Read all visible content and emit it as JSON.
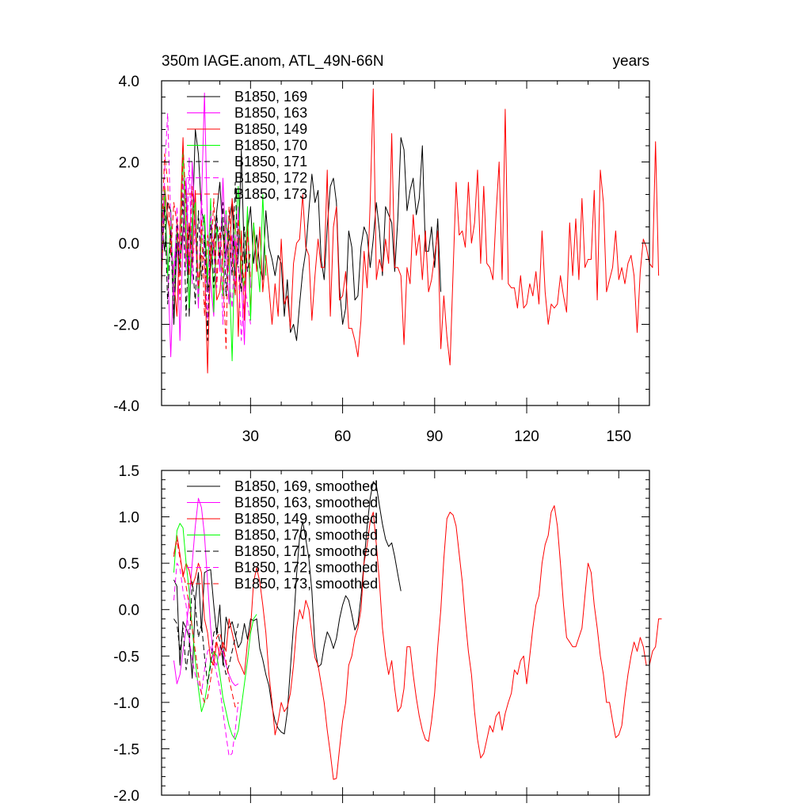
{
  "colors": {
    "s169": "#000000",
    "s163": "#ff00ff",
    "s149": "#ff0000",
    "s170": "#00ff00",
    "s171": "#000000",
    "s172": "#ff00ff",
    "s173": "#ff0000"
  },
  "chart_data": [
    {
      "type": "line",
      "title": "350m IAGE.anom, ATL_49N-66N",
      "subtitle_right": "years",
      "xlim": [
        1,
        160
      ],
      "ylim": [
        -4.0,
        4.0
      ],
      "xticks": [
        30,
        60,
        90,
        120,
        150
      ],
      "xtick_labels": [
        "30",
        "60",
        "90",
        "120",
        "150"
      ],
      "yticks": [
        -4.0,
        -2.0,
        0.0,
        2.0,
        4.0
      ],
      "ytick_labels": [
        "-4.0",
        "-2.0",
        "0.0",
        "2.0",
        "4.0"
      ],
      "legend_placement": "top-left",
      "series": [
        {
          "name": "B1850, 169",
          "style": "solid",
          "color_key": "s169",
          "x_start": 1,
          "values": [
            0.5,
            -0.2,
            1.0,
            0.8,
            -2.0,
            0.0,
            -0.5,
            0.3,
            1.5,
            -1.8,
            0.2,
            2.8,
            2.2,
            0.8,
            0.5,
            -1.2,
            -0.6,
            0.0,
            0.8,
            1.5,
            0.2,
            -0.4,
            0.6,
            1.0,
            -0.8,
            -0.3,
            2.3,
            -0.5,
            0.3,
            0.9,
            -0.5,
            0.2,
            -0.6,
            -0.9,
            0.8,
            -0.1,
            -0.4,
            -0.8,
            -0.3,
            -0.5,
            -1.8,
            -0.9,
            -2.2,
            -2.0,
            -2.4,
            -1.5,
            -0.7,
            -0.2,
            0.8,
            1.7,
            1.0,
            1.3,
            -0.4,
            -0.9,
            0.4,
            1.4,
            1.6,
            1.0,
            -1.1,
            -2.0,
            -1.6,
            0.3,
            -0.1,
            -1.4,
            -1.3,
            -0.1,
            0.4,
            0.2,
            -0.6,
            0.1,
            1.0,
            0.3,
            -0.8,
            0.9,
            0.7,
            0.5,
            -0.7,
            0.6,
            2.6,
            2.3,
            0.8,
            1.3,
            1.6,
            0.7,
            1.1,
            2.4,
            -0.2,
            -0.2,
            0.4,
            -0.6,
            0.6,
            -1.2
          ]
        },
        {
          "name": "B1850, 163",
          "style": "solid",
          "color_key": "s163",
          "x_start": 1,
          "values": [
            0.3,
            1.2,
            -0.5,
            -2.8,
            -0.6,
            0.4,
            -2.4,
            0.1,
            1.6,
            -0.7,
            2.0,
            0.4,
            -1.6,
            1.0,
            3.7,
            0.3,
            -1.0,
            -1.8,
            0.5,
            -0.7,
            1.6,
            -0.3,
            -1.5,
            0.2,
            -1.2,
            0.9,
            -0.9,
            -2.5,
            0.6,
            -1.1
          ]
        },
        {
          "name": "B1850, 149",
          "style": "solid",
          "color_key": "s149",
          "x_start": 1,
          "values": [
            -1.0,
            1.4,
            0.6,
            0.2,
            -0.9,
            -1.8,
            0.4,
            2.6,
            -0.5,
            0.5,
            -0.6,
            1.3,
            -1.3,
            -0.3,
            -0.4,
            -3.2,
            -0.1,
            0.1,
            -1.4,
            -1.2,
            -0.3,
            0.7,
            -0.7,
            1.1,
            0.2,
            -2.3,
            0.3,
            -1.9,
            0.6,
            -1.8,
            0.5,
            -0.7,
            0.4,
            -1.2,
            -0.3,
            -1.1,
            -2.0,
            -1.0,
            -1.8,
            0.1,
            -1.5,
            -1.3,
            -2.1,
            -0.5,
            0.0,
            0.1,
            1.2,
            -0.1,
            -0.3,
            -1.9,
            -0.8,
            0.1,
            -0.6,
            -0.6,
            1.8,
            -1.8,
            0.4,
            0.9,
            -1.4,
            -1.3,
            -0.7,
            -2.1,
            -2.1,
            -2.4,
            -2.8,
            -1.9,
            -0.2,
            -1.1,
            1.0,
            3.8,
            -0.9,
            -0.4,
            -0.7,
            0.1,
            -0.5,
            2.7,
            -0.6,
            -0.6,
            -0.8,
            -2.5,
            -0.6,
            -1.0,
            0.7,
            -0.3,
            0.2,
            -0.9,
            0.3,
            -1.2,
            -0.9,
            -0.3,
            0.3,
            -2.6,
            -1.3,
            -2.3,
            -3.0,
            -0.7,
            1.5,
            0.2,
            0.3,
            -0.1,
            1.5,
            0.0,
            0.5,
            1.8,
            -0.5,
            1.4,
            -0.5,
            -0.6,
            -0.9,
            0.7,
            2.0,
            -0.9,
            3.3,
            -1.0,
            -1.1,
            -1.1,
            -1.6,
            -0.8,
            -1.6,
            -1.5,
            -1.0,
            -1.3,
            -0.7,
            -1.5,
            0.3,
            -1.2,
            -2.0,
            -1.5,
            -1.6,
            -1.5,
            -0.8,
            -1.3,
            -1.7,
            0.5,
            -0.8,
            0.6,
            -0.9,
            1.1,
            -0.6,
            -0.4,
            -0.4,
            1.3,
            -1.4,
            1.8,
            1.0,
            -1.2,
            -0.9,
            -0.6,
            0.3,
            -0.9,
            -0.6,
            -1.0,
            -0.5,
            -0.3,
            -0.8,
            -2.2,
            -0.7,
            0.1,
            -0.1,
            -0.5,
            -0.6,
            2.5,
            -0.8
          ]
        },
        {
          "name": "B1850, 170",
          "style": "solid",
          "color_key": "s170",
          "x_start": 1,
          "values": [
            0.4,
            1.3,
            -0.8,
            0.5,
            -1.1,
            0.3,
            -0.6,
            2.3,
            0.1,
            -1.6,
            0.6,
            1.0,
            -1.4,
            0.2,
            0.7,
            -0.9,
            1.1,
            -1.7,
            0.4,
            -0.2,
            -1.3,
            0.8,
            -0.5,
            -2.9,
            0.3,
            1.4,
            -0.7,
            -1.1,
            0.9,
            -1.9,
            0.5,
            -0.3,
            -1.2,
            1.2,
            -0.8
          ]
        },
        {
          "name": "B1850, 171",
          "style": "dash",
          "color_key": "s171",
          "x_start": 1,
          "values": [
            -0.6,
            0.9,
            -1.5,
            0.3,
            -2.0,
            0.6,
            -0.8,
            1.2,
            -1.8,
            0.4,
            -0.3,
            -1.5,
            0.8,
            -0.9,
            0.2,
            -2.4,
            0.5,
            -1.1,
            0.7,
            -0.4,
            1.0,
            -1.3,
            0.3,
            -0.8,
            1.5,
            -0.6,
            -1.2,
            0.4,
            -0.7,
            -0.2
          ]
        },
        {
          "name": "B1850, 172",
          "style": "dash",
          "color_key": "s172",
          "x_start": 1,
          "values": [
            -0.8,
            1.8,
            3.2,
            0.5,
            -1.3,
            0.9,
            -0.4,
            1.6,
            -0.7,
            2.1,
            -1.0,
            0.6,
            -1.4,
            1.2,
            -0.5,
            -1.9,
            0.8,
            -0.3,
            -1.1,
            0.4,
            -2.0,
            0.7,
            -0.9,
            -1.6,
            0.2,
            -0.6,
            -2.4,
            -1.0,
            -1.5,
            -2.0
          ]
        },
        {
          "name": "B1850, 173",
          "style": "dash",
          "color_key": "s173",
          "x_start": 1,
          "values": [
            0.2,
            2.2,
            1.5,
            -0.3,
            1.0,
            0.5,
            -1.4,
            2.4,
            0.9,
            -0.8,
            1.4,
            0.3,
            -1.1,
            0.6,
            -1.8,
            0.2,
            -0.5,
            1.1,
            -1.0,
            0.4,
            -0.7,
            -2.6,
            0.9,
            -0.2,
            -1.3,
            0.6,
            -0.4,
            -1.0,
            0.3,
            -0.9
          ]
        }
      ]
    },
    {
      "type": "line",
      "xlim": [
        1,
        160
      ],
      "ylim": [
        -2.0,
        1.5
      ],
      "xticks": [
        30,
        60,
        90,
        120,
        150
      ],
      "yticks": [
        -2.0,
        -1.5,
        -1.0,
        -0.5,
        0.0,
        0.5,
        1.0,
        1.5
      ],
      "ytick_labels": [
        "-2.0",
        "-1.5",
        "-1.0",
        "-0.5",
        "0.0",
        "0.5",
        "1.0",
        "1.5"
      ],
      "legend_placement": "top-left",
      "series": [
        {
          "name": "B1850, 169, smoothed",
          "style": "solid",
          "color_key": "s169",
          "x_start": 5,
          "values": [
            0.32,
            0.25,
            -0.6,
            -0.13,
            -0.2,
            -0.3,
            -0.74,
            0.1,
            0.4,
            -0.23,
            0.4,
            0.42,
            0.43,
            0.05,
            -0.27,
            0.05,
            -0.6,
            -0.08,
            -0.2,
            -0.13,
            -0.27,
            -0.41,
            -0.35,
            -0.15,
            -0.32,
            -0.1,
            -0.12,
            -0.1,
            -0.42,
            -0.54,
            -0.7,
            -0.82,
            -1.05,
            -1.2,
            -1.28,
            -1.32,
            -1.34,
            -1.1,
            -0.63,
            -0.17,
            0.38,
            0.78,
            0.95,
            0.76,
            0.55,
            0.2,
            -0.4,
            -0.62,
            -0.59,
            -0.39,
            -0.24,
            -0.31,
            -0.42,
            -0.31,
            -0.1,
            0.05,
            0.15,
            0.1,
            -0.05,
            -0.22,
            -0.15,
            0.14,
            0.52,
            0.9,
            1.2,
            1.38,
            1.34,
            1.12,
            0.92,
            0.76,
            0.68,
            0.72,
            0.57,
            0.38,
            0.2
          ]
        },
        {
          "name": "B1850, 163, smoothed",
          "style": "solid",
          "color_key": "s163",
          "x_start": 5,
          "values": [
            -0.55,
            -0.8,
            -0.7,
            -0.45,
            -0.2,
            0.1,
            0.5,
            0.9,
            1.2,
            1.1,
            0.8,
            0.3,
            -0.2,
            -0.55,
            -0.6,
            -0.4,
            -0.45,
            -0.6,
            -0.7,
            -0.78,
            -0.82,
            -0.8
          ]
        },
        {
          "name": "B1850, 149, smoothed",
          "style": "solid",
          "color_key": "s149",
          "x_start": 5,
          "values": [
            0.57,
            0.8,
            0.6,
            0.35,
            0.5,
            0.42,
            0.25,
            0.35,
            0.5,
            0.4,
            -0.1,
            -0.25,
            -0.55,
            -0.6,
            -0.35,
            -0.5,
            -0.35,
            -0.45,
            -0.1,
            -0.25,
            -0.4,
            -0.55,
            -0.62,
            -0.7,
            -0.35,
            -0.2,
            0.3,
            0.45,
            0.3,
            0.05,
            -0.25,
            -0.7,
            -1.0,
            -1.35,
            -1.2,
            -1.0,
            -1.1,
            -1.05,
            -0.9,
            -0.6,
            -0.2,
            0.0,
            -0.1,
            0.1,
            0.0,
            -0.28,
            -0.52,
            -0.6,
            -0.8,
            -1.0,
            -1.3,
            -1.55,
            -1.83,
            -1.82,
            -1.5,
            -1.2,
            -1.0,
            -0.6,
            -0.5,
            -0.3,
            -0.2,
            0.0,
            0.5,
            0.7,
            0.95,
            1.05,
            0.7,
            0.3,
            -0.2,
            -0.5,
            -0.7,
            -0.55,
            -0.85,
            -1.1,
            -1.05,
            -0.85,
            -0.4,
            -0.4,
            -0.7,
            -0.95,
            -1.15,
            -1.3,
            -1.4,
            -1.42,
            -1.2,
            -0.9,
            -0.4,
            0.0,
            0.55,
            0.98,
            1.05,
            1.02,
            0.9,
            0.6,
            0.3,
            -0.1,
            -0.45,
            -0.7,
            -1.1,
            -1.4,
            -1.6,
            -1.55,
            -1.4,
            -1.25,
            -1.32,
            -1.15,
            -1.1,
            -1.3,
            -1.12,
            -1.0,
            -0.9,
            -0.65,
            -0.7,
            -0.55,
            -0.5,
            -0.8,
            -0.5,
            -0.2,
            0.05,
            0.15,
            0.5,
            0.7,
            0.8,
            1.05,
            1.12,
            0.9,
            0.5,
            0.05,
            -0.3,
            -0.35,
            -0.4,
            -0.4,
            -0.3,
            -0.2,
            0.15,
            0.5,
            0.4,
            0.05,
            -0.2,
            -0.5,
            -0.7,
            -1.0,
            -1.0,
            -1.2,
            -1.38,
            -1.35,
            -1.25,
            -0.95,
            -0.7,
            -0.5,
            -0.35,
            -0.45,
            -0.3,
            -0.4,
            -0.6,
            -0.6,
            -0.45,
            -0.4,
            -0.1,
            -0.1
          ]
        },
        {
          "name": "B1850, 170, smoothed",
          "style": "solid",
          "color_key": "s170",
          "x_start": 5,
          "values": [
            0.4,
            0.85,
            0.93,
            0.88,
            0.5,
            0.2,
            -0.2,
            -0.55,
            -0.85,
            -1.1,
            -1.0,
            -0.8,
            -0.55,
            -0.45,
            -0.5,
            -0.7,
            -0.95,
            -1.1,
            -1.25,
            -1.35,
            -1.4,
            -1.3,
            -1.05,
            -0.8,
            -0.55,
            -0.25,
            -0.1,
            -0.05
          ]
        },
        {
          "name": "B1850, 171, smoothed",
          "style": "dash",
          "color_key": "s171",
          "x_start": 5,
          "values": [
            -0.1,
            -0.15,
            -0.45,
            -0.2,
            -0.65,
            -0.4,
            0.3,
            0.05,
            -0.3,
            -0.15,
            -0.5,
            -0.8,
            -0.6,
            -0.25,
            -0.2,
            -0.35,
            -0.55,
            -0.7,
            -0.6,
            -0.45,
            -0.3,
            -0.15
          ]
        },
        {
          "name": "B1850, 172, smoothed",
          "style": "dash",
          "color_key": "s172",
          "x_start": 5,
          "values": [
            0.1,
            0.5,
            0.45,
            0.2,
            0.05,
            -0.3,
            -0.55,
            -0.7,
            -0.8,
            -0.9,
            -0.65,
            -0.45,
            -0.4,
            -0.55,
            -0.7,
            -0.85,
            -1.1,
            -1.35,
            -1.58,
            -1.55,
            -1.3,
            -1.0
          ]
        },
        {
          "name": "B1850, 173, smoothed",
          "style": "dash",
          "color_key": "s173",
          "x_start": 5,
          "values": [
            0.6,
            0.75,
            0.55,
            0.4,
            0.25,
            0.05,
            -0.2,
            -0.45,
            -0.7,
            -0.9,
            -1.0,
            -0.95,
            -0.75,
            -0.5,
            -0.3,
            -0.25,
            -0.4,
            -0.55,
            -0.75,
            -0.9,
            -1.05,
            -1.0
          ]
        }
      ]
    }
  ]
}
